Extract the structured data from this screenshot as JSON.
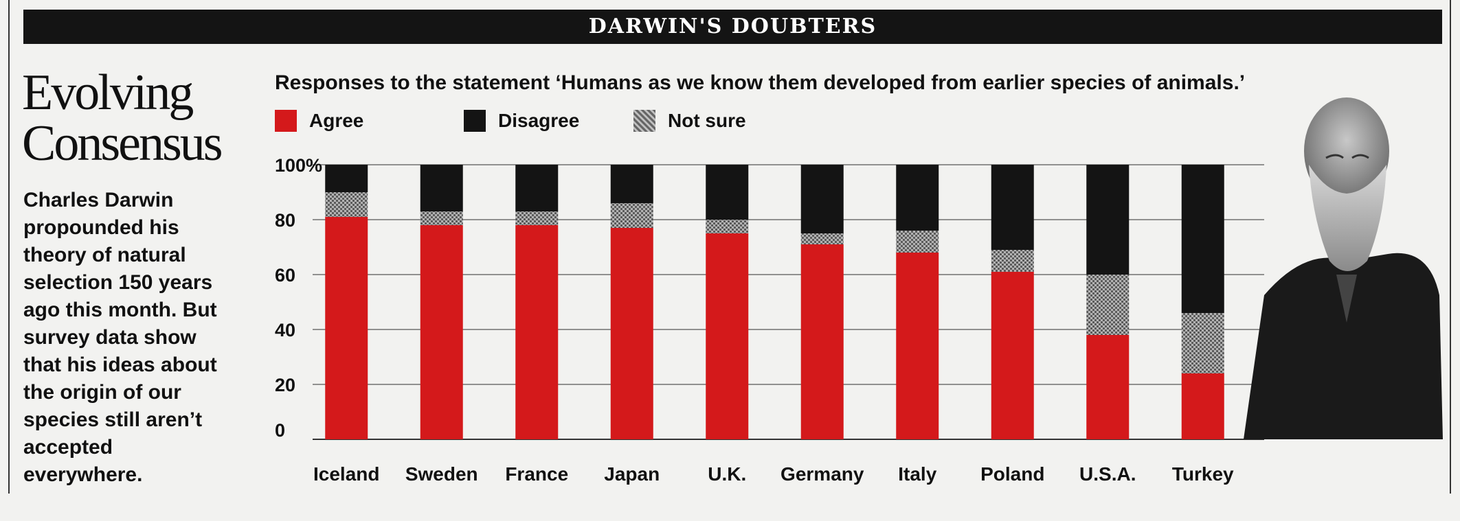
{
  "header": {
    "banner": "DARWIN'S DOUBTERS"
  },
  "sidebar": {
    "title_line1": "Evolving",
    "title_line2": "Consensus",
    "description": "Charles Darwin propounded his theory of natural selection 150 years ago this month. But survey data show that his ideas about the origin of our species still aren’t accepted everywhere."
  },
  "colors": {
    "agree": "#d4191b",
    "disagree": "#141414",
    "not_sure": "#9a9a9a"
  },
  "chart_data": {
    "type": "bar",
    "stacked": true,
    "title": "Responses to the statement ‘Humans as we know them developed from earlier species of animals.’",
    "categories": [
      "Iceland",
      "Sweden",
      "France",
      "Japan",
      "U.K.",
      "Germany",
      "Italy",
      "Poland",
      "U.S.A.",
      "Turkey"
    ],
    "series": [
      {
        "name": "Agree",
        "values": [
          81,
          78,
          78,
          77,
          75,
          71,
          68,
          61,
          38,
          24
        ]
      },
      {
        "name": "Not sure",
        "values": [
          9,
          5,
          5,
          9,
          5,
          4,
          8,
          8,
          22,
          22
        ]
      },
      {
        "name": "Disagree",
        "values": [
          10,
          17,
          17,
          14,
          20,
          25,
          24,
          31,
          40,
          54
        ]
      }
    ],
    "yticks": [
      "0",
      "20",
      "40",
      "60",
      "80",
      "100%"
    ],
    "ylim": [
      0,
      100
    ],
    "grid": true,
    "legend_position": "top-left"
  }
}
